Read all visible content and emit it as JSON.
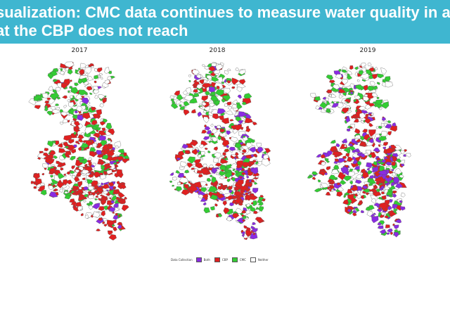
{
  "slide": {
    "title_line_1": "sualization: CMC data continues to measure water quality in areas",
    "title_line_2": "at the CBP does not reach",
    "title_bar_color": "#3fb6d0"
  },
  "panels": [
    {
      "year": "2017"
    },
    {
      "year": "2018"
    },
    {
      "year": "2019"
    }
  ],
  "legend": {
    "title": "Data Collection",
    "items": [
      {
        "label": "Both",
        "color": "#8a2be2"
      },
      {
        "label": "CBP",
        "color": "#e02020"
      },
      {
        "label": "CMC",
        "color": "#33cc33"
      },
      {
        "label": "Neither",
        "color": "#ffffff"
      }
    ]
  }
}
